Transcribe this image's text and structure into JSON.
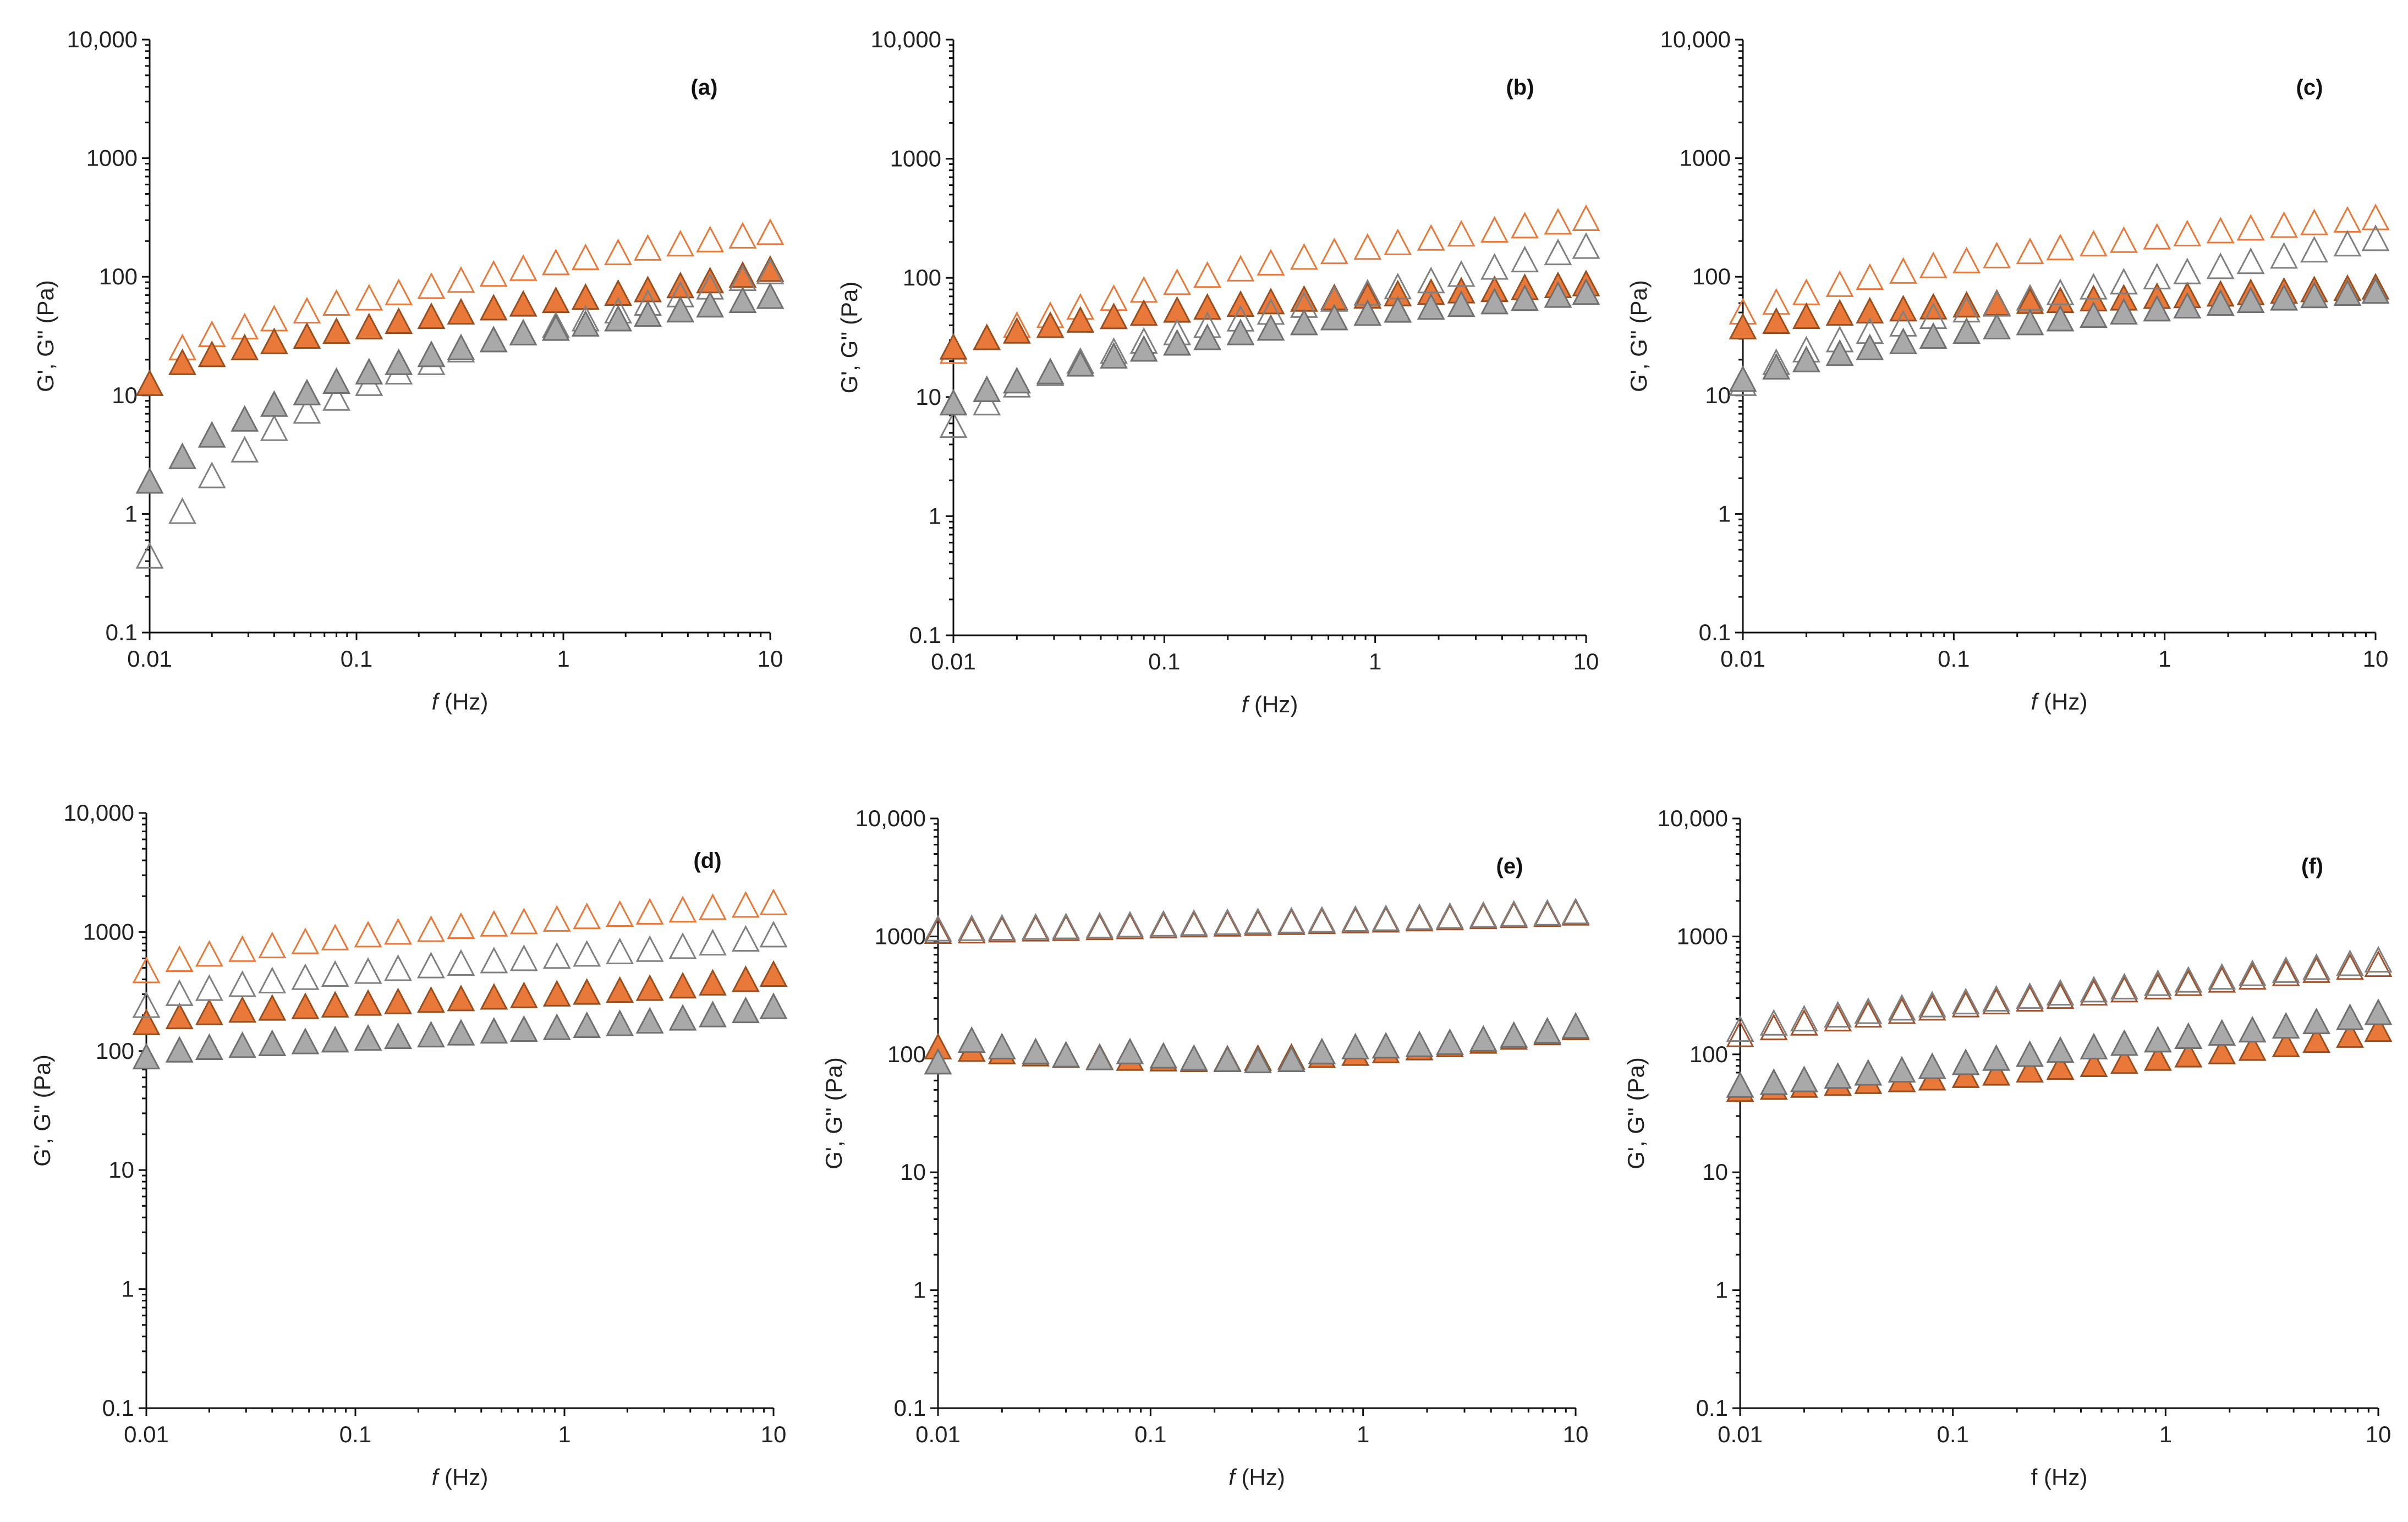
{
  "figure": {
    "description_free": true
  },
  "chart_data": [
    {
      "type": "scatter",
      "panel_label": "(a)",
      "xlabel_italic": "f",
      "xlabel_rest": " (Hz)",
      "ylabel": "G', G'' (Pa)",
      "x_scale": "log",
      "y_scale": "log",
      "xlim": [
        0.01,
        10
      ],
      "ylim": [
        0.1,
        10000
      ],
      "x_ticks": [
        "0.01",
        "0.1",
        "1",
        "10"
      ],
      "y_ticks": [
        "0.1",
        "1",
        "10",
        "100",
        "1000",
        "10,000"
      ],
      "x": [
        0.01,
        0.0144,
        0.02,
        0.0288,
        0.04,
        0.0576,
        0.08,
        0.115,
        0.16,
        0.23,
        0.32,
        0.46,
        0.64,
        0.92,
        1.28,
        1.84,
        2.56,
        3.68,
        5.12,
        7.36,
        10
      ],
      "series": [
        {
          "name": "orange open",
          "fill": "none",
          "stroke": "#E8793A",
          "values": [
            null,
            24,
            31,
            36,
            42,
            49,
            57,
            63,
            70,
            79,
            89,
            100,
            112,
            125,
            138,
            152,
            166,
            180,
            195,
            210,
            225
          ]
        },
        {
          "name": "orange filled",
          "fill": "#E8793A",
          "stroke": "#9A4E1E",
          "values": [
            12,
            18,
            21,
            24,
            27,
            30,
            33,
            36,
            40,
            44,
            48,
            52,
            56,
            60,
            64,
            69,
            74,
            80,
            88,
            98,
            110
          ]
        },
        {
          "name": "gray open",
          "fill": "none",
          "stroke": "#808080",
          "values": [
            0.42,
            1.0,
            2.0,
            3.3,
            5.0,
            7.0,
            9.0,
            12,
            15,
            18,
            23,
            28,
            32,
            37,
            42,
            49,
            57,
            67,
            78,
            92,
            105
          ]
        },
        {
          "name": "gray filled",
          "fill": "#A9A9A9",
          "stroke": "#707070",
          "values": [
            1.8,
            2.9,
            4.4,
            6.0,
            8.0,
            10,
            12.5,
            15,
            18,
            21,
            24,
            28,
            32,
            35,
            38,
            42,
            46,
            50,
            55,
            60,
            65
          ]
        }
      ]
    },
    {
      "type": "scatter",
      "panel_label": "(b)",
      "xlabel_italic": "f",
      "xlabel_rest": " (Hz)",
      "ylabel": "G', G'' (Pa)",
      "x_scale": "log",
      "y_scale": "log",
      "xlim": [
        0.01,
        10
      ],
      "ylim": [
        0.1,
        10000
      ],
      "x_ticks": [
        "0.01",
        "0.1",
        "1",
        "10"
      ],
      "y_ticks": [
        "0.1",
        "1",
        "10",
        "100",
        "1000",
        "10,000"
      ],
      "x": [
        0.01,
        0.0144,
        0.02,
        0.0288,
        0.04,
        0.0576,
        0.08,
        0.115,
        0.16,
        0.23,
        0.32,
        0.46,
        0.64,
        0.92,
        1.28,
        1.84,
        2.56,
        3.68,
        5.12,
        7.36,
        10
      ],
      "series": [
        {
          "name": "orange open",
          "fill": "none",
          "stroke": "#E8793A",
          "values": [
            23,
            30,
            38,
            46,
            54,
            64,
            75,
            87,
            100,
            113,
            127,
            142,
            158,
            172,
            188,
            205,
            222,
            240,
            260,
            280,
            300
          ]
        },
        {
          "name": "orange filled",
          "fill": "#E8793A",
          "stroke": "#9A4E1E",
          "values": [
            25,
            30,
            34,
            38,
            42,
            45,
            48,
            51,
            54,
            57,
            60,
            63,
            65,
            67,
            70,
            72,
            74,
            76,
            79,
            82,
            85
          ]
        },
        {
          "name": "gray open",
          "fill": "none",
          "stroke": "#808080",
          "values": [
            5.5,
            8.5,
            12,
            15,
            19,
            23,
            28,
            33,
            38,
            43,
            49,
            56,
            63,
            71,
            80,
            90,
            102,
            117,
            135,
            155,
            175
          ]
        },
        {
          "name": "gray filled",
          "fill": "#A9A9A9",
          "stroke": "#707070",
          "values": [
            8.5,
            11,
            13,
            15.5,
            18,
            21,
            24,
            27,
            30,
            33,
            36,
            40,
            44,
            48,
            51,
            54,
            57,
            60,
            64,
            68,
            72
          ]
        }
      ]
    },
    {
      "type": "scatter",
      "panel_label": "(c)",
      "xlabel_italic": "f",
      "xlabel_rest": " (Hz)",
      "ylabel": "G', G'' (Pa)",
      "x_scale": "log",
      "y_scale": "log",
      "xlim": [
        0.01,
        10
      ],
      "ylim": [
        0.1,
        10000
      ],
      "x_ticks": [
        "0.01",
        "0.1",
        "1",
        "10"
      ],
      "y_ticks": [
        "0.1",
        "1",
        "10",
        "100",
        "1000",
        "10,000"
      ],
      "x": [
        0.01,
        0.0144,
        0.02,
        0.0288,
        0.04,
        0.0576,
        0.08,
        0.115,
        0.16,
        0.23,
        0.32,
        0.46,
        0.64,
        0.92,
        1.28,
        1.84,
        2.56,
        3.68,
        5.12,
        7.36,
        10
      ],
      "series": [
        {
          "name": "orange open",
          "fill": "none",
          "stroke": "#E8793A",
          "values": [
            48,
            58,
            70,
            82,
            94,
            106,
            118,
            130,
            143,
            155,
            167,
            180,
            193,
            206,
            219,
            232,
            245,
            258,
            272,
            286,
            300
          ]
        },
        {
          "name": "orange filled",
          "fill": "#E8793A",
          "stroke": "#9A4E1E",
          "values": [
            36,
            40,
            44,
            47,
            49,
            51,
            53,
            55,
            57,
            59,
            60,
            62,
            63,
            65,
            66,
            68,
            70,
            72,
            74,
            76,
            78
          ]
        },
        {
          "name": "gray open",
          "fill": "none",
          "stroke": "#808080",
          "values": [
            12,
            18,
            23,
            28,
            33,
            38,
            44,
            50,
            56,
            63,
            70,
            78,
            86,
            95,
            105,
            116,
            128,
            142,
            160,
            180,
            200
          ]
        },
        {
          "name": "gray filled",
          "fill": "#A9A9A9",
          "stroke": "#707070",
          "values": [
            13,
            16.5,
            19,
            21.5,
            24,
            27,
            30,
            33,
            36,
            39,
            42,
            45,
            48,
            51,
            54,
            57,
            60,
            63,
            66,
            69,
            72
          ]
        }
      ]
    },
    {
      "type": "scatter",
      "panel_label": "(d)",
      "xlabel_italic": "f",
      "xlabel_rest": " (Hz)",
      "ylabel": "G', G'' (Pa)",
      "x_scale": "log",
      "y_scale": "log",
      "xlim": [
        0.01,
        10
      ],
      "ylim": [
        0.1,
        10000
      ],
      "x_ticks": [
        "0.01",
        "0.1",
        "1",
        "10"
      ],
      "y_ticks": [
        "0.1",
        "1",
        "10",
        "100",
        "1000",
        "10,000"
      ],
      "x": [
        0.01,
        0.0144,
        0.02,
        0.0288,
        0.04,
        0.0576,
        0.08,
        0.115,
        0.16,
        0.23,
        0.32,
        0.46,
        0.64,
        0.92,
        1.28,
        1.84,
        2.56,
        3.68,
        5.12,
        7.36,
        10
      ],
      "series": [
        {
          "name": "orange open",
          "fill": "none",
          "stroke": "#E8793A",
          "values": [
            450,
            560,
            620,
            680,
            730,
            790,
            850,
            900,
            950,
            1000,
            1060,
            1110,
            1160,
            1220,
            1280,
            1340,
            1400,
            1460,
            1530,
            1600,
            1680
          ]
        },
        {
          "name": "orange filled",
          "fill": "#E8793A",
          "stroke": "#9A4E1E",
          "values": [
            165,
            185,
            200,
            210,
            218,
            225,
            232,
            240,
            247,
            254,
            262,
            270,
            278,
            287,
            297,
            308,
            320,
            335,
            355,
            380,
            420
          ]
        },
        {
          "name": "gray open",
          "fill": "none",
          "stroke": "#808080",
          "values": [
            230,
            290,
            320,
            345,
            370,
            395,
            420,
            445,
            470,
            495,
            520,
            545,
            570,
            595,
            620,
            650,
            680,
            720,
            770,
            830,
            900
          ]
        },
        {
          "name": "gray filled",
          "fill": "#A9A9A9",
          "stroke": "#707070",
          "values": [
            85,
            97,
            102,
            106,
            110,
            114,
            118,
            122,
            126,
            130,
            135,
            140,
            145,
            150,
            156,
            162,
            170,
            180,
            192,
            208,
            225
          ]
        }
      ]
    },
    {
      "type": "scatter",
      "panel_label": "(e)",
      "xlabel_italic": "f",
      "xlabel_rest": " (Hz)",
      "ylabel": "G', G'' (Pa)",
      "x_scale": "log",
      "y_scale": "log",
      "xlim": [
        0.01,
        10
      ],
      "ylim": [
        0.1,
        10000
      ],
      "x_ticks": [
        "0.01",
        "0.1",
        "1",
        "10"
      ],
      "y_ticks": [
        "0.1",
        "1",
        "10",
        "100",
        "1000",
        "10,000"
      ],
      "x": [
        0.01,
        0.0144,
        0.02,
        0.0288,
        0.04,
        0.0576,
        0.08,
        0.115,
        0.16,
        0.23,
        0.32,
        0.46,
        0.64,
        0.92,
        1.28,
        1.84,
        2.56,
        3.68,
        5.12,
        7.36,
        10
      ],
      "series": [
        {
          "name": "orange open",
          "fill": "none",
          "stroke": "#A0522D",
          "values": [
            1050,
            1060,
            1080,
            1100,
            1110,
            1130,
            1150,
            1170,
            1190,
            1210,
            1230,
            1250,
            1270,
            1290,
            1310,
            1340,
            1370,
            1400,
            1430,
            1460,
            1500
          ]
        },
        {
          "name": "orange filled",
          "fill": "#E8793A",
          "stroke": "#9A4E1E",
          "values": [
            110,
            105,
            100,
            96,
            93,
            90,
            88,
            87,
            86,
            87,
            88,
            90,
            93,
            97,
            102,
            108,
            115,
            123,
            133,
            145,
            160
          ]
        },
        {
          "name": "gray open",
          "fill": "none",
          "stroke": "#808080",
          "values": [
            1100,
            1110,
            1120,
            1140,
            1150,
            1170,
            1190,
            1210,
            1230,
            1250,
            1270,
            1290,
            1310,
            1330,
            1350,
            1380,
            1410,
            1440,
            1470,
            1500,
            1540
          ]
        },
        {
          "name": "gray filled",
          "fill": "#A9A9A9",
          "stroke": "#707070",
          "values": [
            82,
            125,
            110,
            100,
            94,
            89,
            100,
            92,
            88,
            86,
            84,
            86,
            100,
            110,
            112,
            115,
            120,
            128,
            138,
            150,
            165
          ]
        }
      ]
    },
    {
      "type": "scatter",
      "panel_label": "(f)",
      "xlabel_italic": "",
      "xlabel_rest": "f (Hz)",
      "ylabel": "G', G'' (Pa)",
      "x_scale": "log",
      "y_scale": "log",
      "xlim": [
        0.01,
        10
      ],
      "ylim": [
        0.1,
        10000
      ],
      "x_ticks": [
        "0.01",
        "0.1",
        "1",
        "10"
      ],
      "y_ticks": [
        "0.1",
        "1",
        "10",
        "100",
        "1000",
        "10,000"
      ],
      "x": [
        0.01,
        0.0144,
        0.02,
        0.0288,
        0.04,
        0.0576,
        0.08,
        0.115,
        0.16,
        0.23,
        0.32,
        0.46,
        0.64,
        0.92,
        1.28,
        1.84,
        2.56,
        3.68,
        5.12,
        7.36,
        10
      ],
      "series": [
        {
          "name": "orange open",
          "fill": "none",
          "stroke": "#A0522D",
          "values": [
            140,
            160,
            175,
            190,
            205,
            220,
            235,
            250,
            265,
            280,
            295,
            315,
            335,
            355,
            380,
            405,
            430,
            460,
            490,
            520,
            550
          ]
        },
        {
          "name": "orange filled",
          "fill": "#E8793A",
          "stroke": "#9A4E1E",
          "values": [
            48,
            50,
            52,
            54,
            56,
            58,
            60,
            63,
            66,
            70,
            74,
            78,
            83,
            88,
            94,
            100,
            107,
            115,
            125,
            138,
            155
          ]
        },
        {
          "name": "gray open",
          "fill": "none",
          "stroke": "#808080",
          "values": [
            155,
            175,
            190,
            205,
            220,
            235,
            250,
            265,
            280,
            295,
            315,
            335,
            355,
            380,
            405,
            430,
            460,
            490,
            520,
            560,
            600
          ]
        },
        {
          "name": "gray filled",
          "fill": "#A9A9A9",
          "stroke": "#707070",
          "values": [
            52,
            55,
            58,
            62,
            66,
            70,
            75,
            81,
            88,
            95,
            103,
            110,
            118,
            126,
            135,
            144,
            153,
            165,
            180,
            195,
            215
          ]
        }
      ]
    }
  ]
}
